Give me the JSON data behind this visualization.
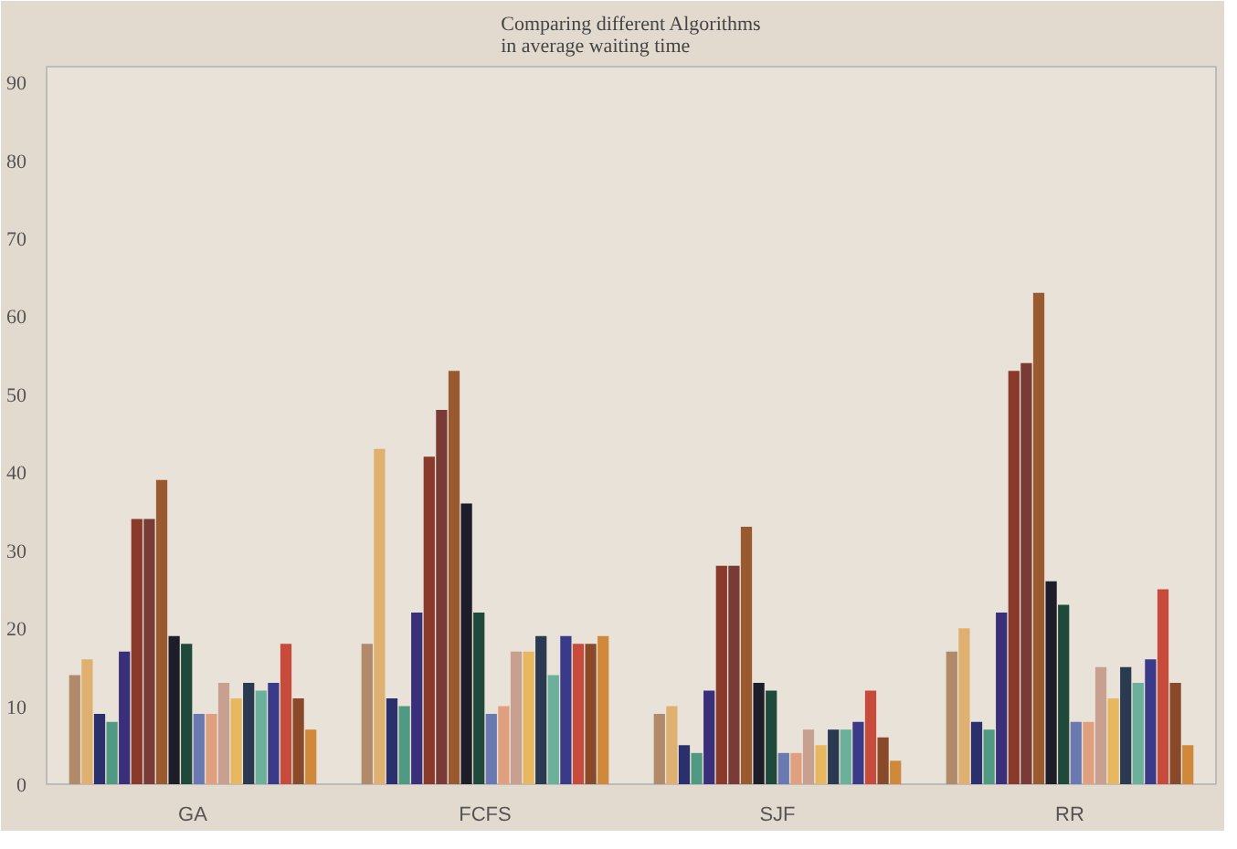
{
  "chart_data": {
    "type": "bar",
    "title": "Comparing different Algorithms\nin average waiting time",
    "categories": [
      "GA",
      "FCFS",
      "SJF",
      "RR"
    ],
    "ylim": [
      0,
      92
    ],
    "yticks": [
      0,
      10,
      20,
      30,
      40,
      50,
      60,
      70,
      80,
      90
    ],
    "grid": false,
    "series": [
      {
        "color": "#b08a6a",
        "values": [
          14,
          18,
          9,
          17
        ]
      },
      {
        "color": "#e0b070",
        "values": [
          16,
          43,
          10,
          20
        ]
      },
      {
        "color": "#2b2f6b",
        "values": [
          9,
          11,
          5,
          8
        ]
      },
      {
        "color": "#4f9a80",
        "values": [
          8,
          10,
          4,
          7
        ]
      },
      {
        "color": "#3a2f7a",
        "values": [
          17,
          22,
          12,
          22
        ]
      },
      {
        "color": "#8a3a2a",
        "values": [
          34,
          42,
          28,
          53
        ]
      },
      {
        "color": "#7a3a35",
        "values": [
          34,
          48,
          28,
          54
        ]
      },
      {
        "color": "#9a5a30",
        "values": [
          39,
          53,
          33,
          63
        ]
      },
      {
        "color": "#1e1e2a",
        "values": [
          19,
          36,
          13,
          26
        ]
      },
      {
        "color": "#1f4a3a",
        "values": [
          18,
          22,
          12,
          23
        ]
      },
      {
        "color": "#6a7ab0",
        "values": [
          9,
          9,
          4,
          8
        ]
      },
      {
        "color": "#e0a080",
        "values": [
          9,
          10,
          4,
          8
        ]
      },
      {
        "color": "#c8a090",
        "values": [
          13,
          17,
          7,
          15
        ]
      },
      {
        "color": "#e8b860",
        "values": [
          11,
          17,
          5,
          11
        ]
      },
      {
        "color": "#2a3a50",
        "values": [
          13,
          19,
          7,
          15
        ]
      },
      {
        "color": "#6ab09a",
        "values": [
          12,
          14,
          7,
          13
        ]
      },
      {
        "color": "#3a3a8a",
        "values": [
          13,
          19,
          8,
          16
        ]
      },
      {
        "color": "#c84a3a",
        "values": [
          18,
          18,
          12,
          25
        ]
      },
      {
        "color": "#8a4a2a",
        "values": [
          11,
          18,
          6,
          13
        ]
      },
      {
        "color": "#d0883a",
        "values": [
          7,
          19,
          3,
          5
        ]
      }
    ]
  }
}
